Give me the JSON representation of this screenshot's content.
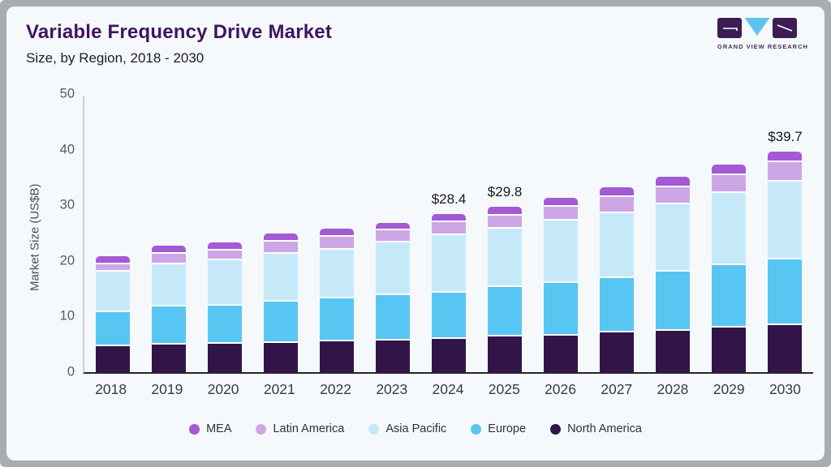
{
  "header": {
    "title": "Variable Frequency Drive Market",
    "subtitle": "Size, by Region, 2018 - 2030",
    "logo": {
      "text": "GRAND VIEW RESEARCH",
      "square_color": "#3c1e55",
      "triangle_color": "#5ec4ee"
    }
  },
  "chart_data": {
    "type": "bar",
    "stacked": true,
    "title": "Variable Frequency Drive Market Size, by Region, 2018 - 2030",
    "xlabel": "",
    "ylabel": "Market Size (US$B)",
    "ylim": [
      0,
      50
    ],
    "yticks": [
      0,
      10,
      20,
      30,
      40,
      50
    ],
    "grid": false,
    "legend_position": "bottom",
    "legend_order": [
      "MEA",
      "Latin America",
      "Asia Pacific",
      "Europe",
      "North America"
    ],
    "categories": [
      "2018",
      "2019",
      "2020",
      "2021",
      "2022",
      "2023",
      "2024",
      "2025",
      "2026",
      "2027",
      "2028",
      "2029",
      "2030"
    ],
    "series": [
      {
        "name": "North America",
        "color": "#321548",
        "values": [
          4.9,
          5.3,
          5.4,
          5.6,
          5.8,
          6.0,
          6.3,
          6.7,
          6.9,
          7.4,
          7.8,
          8.3,
          8.8
        ]
      },
      {
        "name": "Europe",
        "color": "#58c6f2",
        "values": [
          6.2,
          6.8,
          6.9,
          7.4,
          7.8,
          8.2,
          8.3,
          8.9,
          9.4,
          9.8,
          10.6,
          11.3,
          11.8
        ]
      },
      {
        "name": "Asia Pacific",
        "color": "#c5e9f9",
        "values": [
          7.3,
          7.6,
          8.1,
          8.6,
          8.7,
          9.4,
          10.3,
          10.5,
          11.2,
          11.6,
          12.1,
          12.9,
          13.9
        ]
      },
      {
        "name": "Latin America",
        "color": "#cda6e6",
        "values": [
          1.3,
          1.9,
          1.8,
          2.1,
          2.3,
          2.2,
          2.3,
          2.4,
          2.6,
          3.0,
          3.0,
          3.2,
          3.6
        ]
      },
      {
        "name": "MEA",
        "color": "#a35ad3",
        "values": [
          1.2,
          1.1,
          1.1,
          1.2,
          1.2,
          1.1,
          1.2,
          1.3,
          1.3,
          1.4,
          1.6,
          1.6,
          1.6
        ]
      }
    ],
    "totals": [
      20.9,
      22.7,
      23.3,
      24.9,
      25.8,
      26.9,
      28.4,
      29.8,
      31.4,
      33.2,
      35.1,
      37.3,
      39.7
    ],
    "value_labels": [
      {
        "category": "2024",
        "text": "$28.4"
      },
      {
        "category": "2025",
        "text": "$29.8"
      },
      {
        "category": "2030",
        "text": "$39.7"
      }
    ]
  }
}
